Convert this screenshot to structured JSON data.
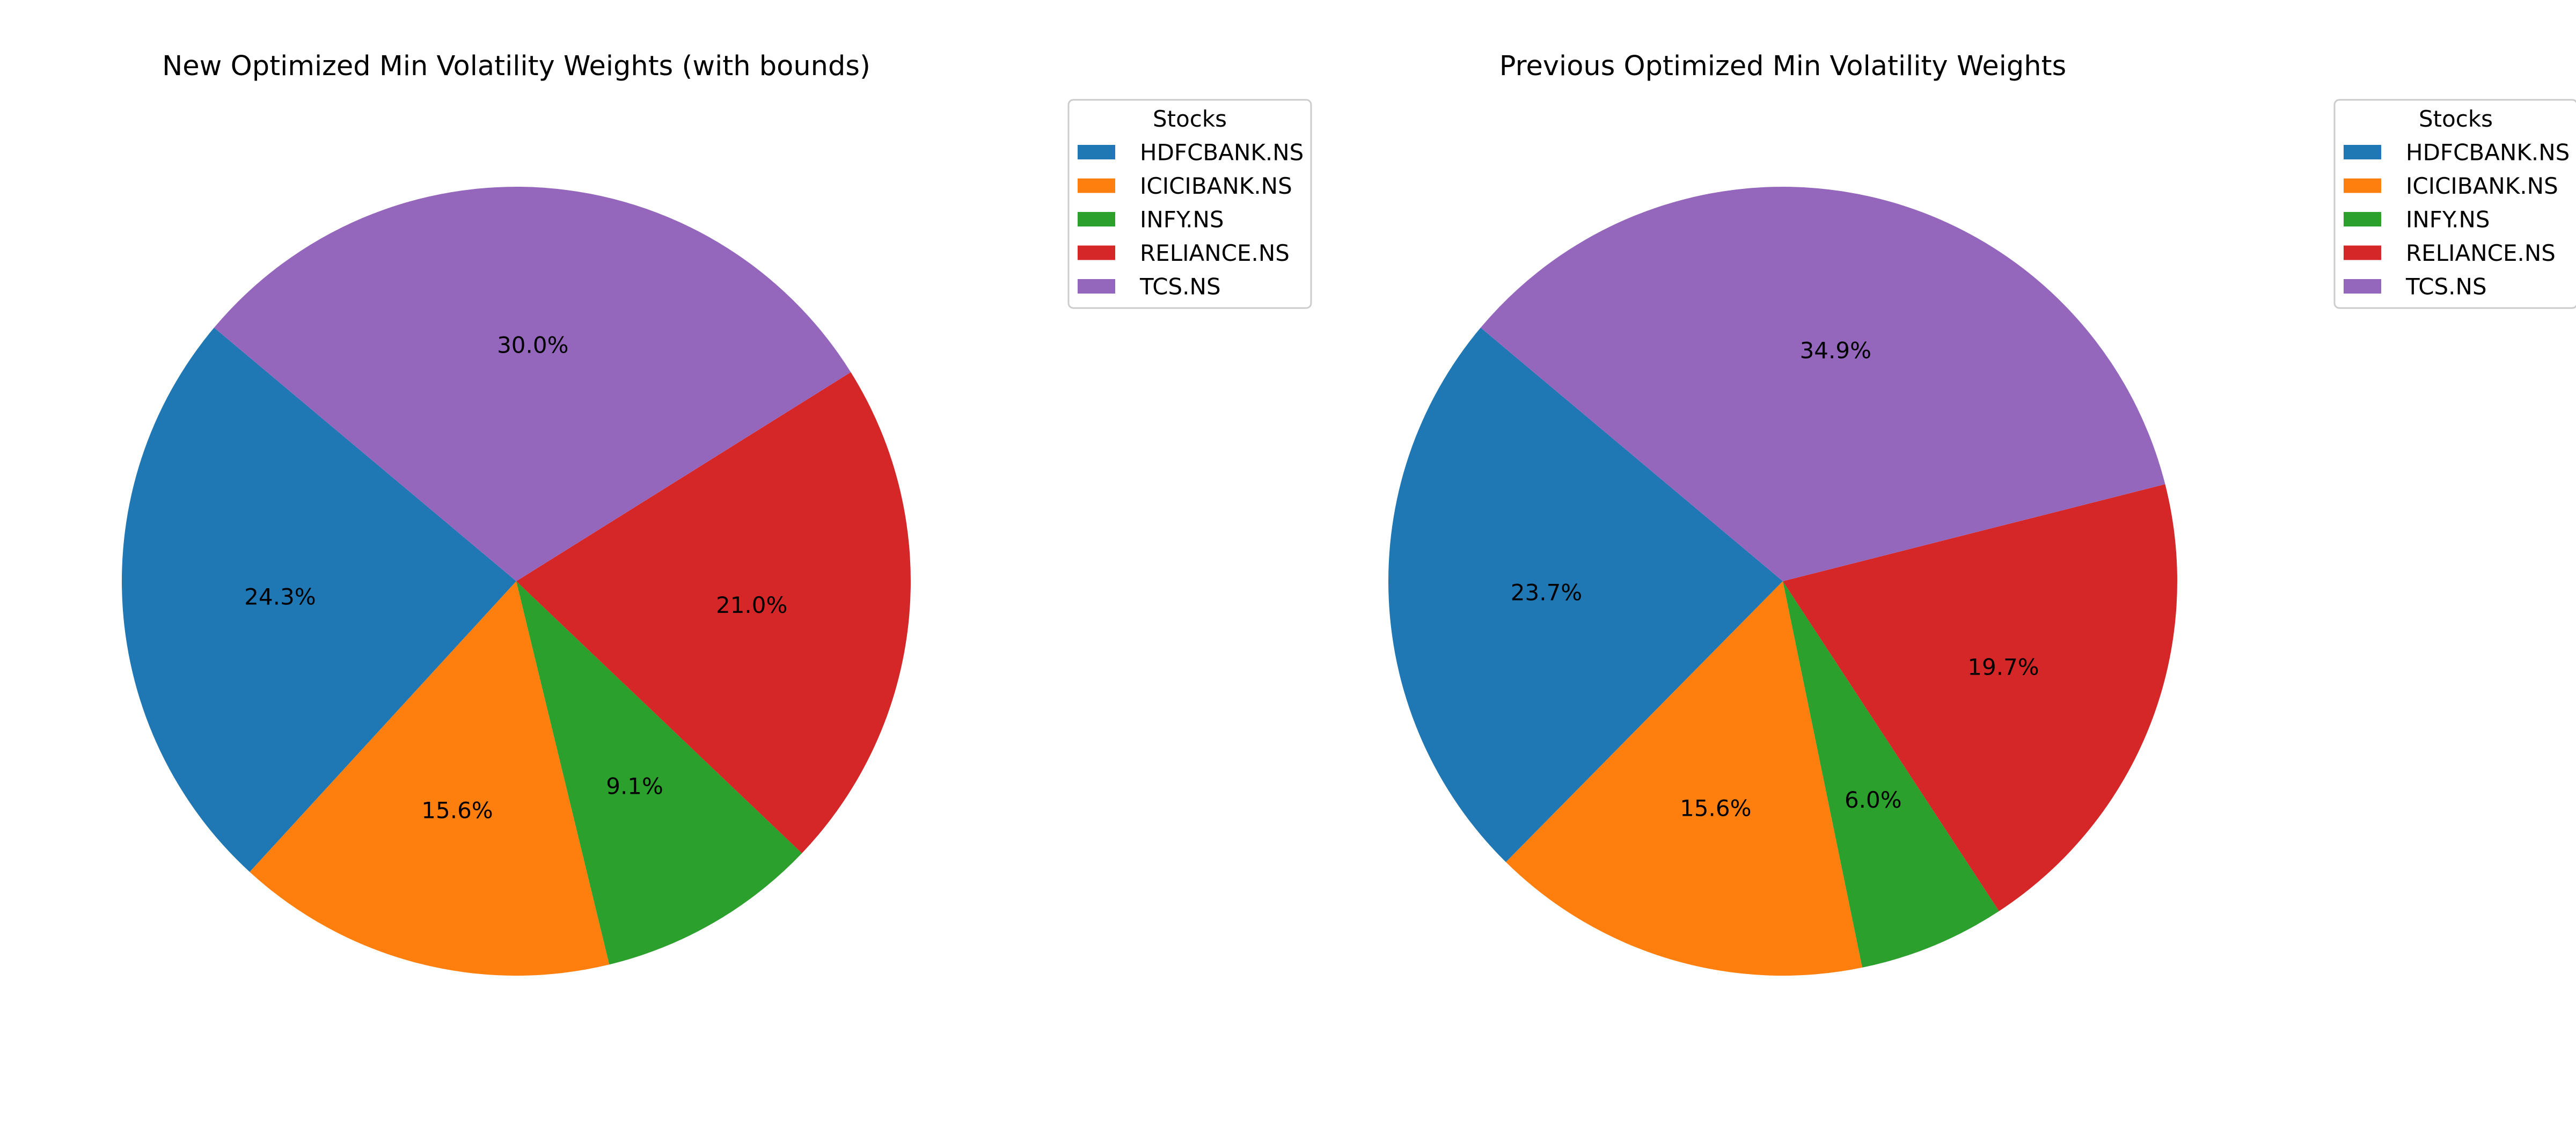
{
  "colors": {
    "HDFCBANK.NS": "#1f77b4",
    "ICICIBANK.NS": "#ff7f0e",
    "INFY.NS": "#2ca02c",
    "RELIANCE.NS": "#d62728",
    "TCS.NS": "#9467bd"
  },
  "chart_data": [
    {
      "type": "pie",
      "title": "New Optimized Min Volatility Weights (with bounds)",
      "legend_title": "Stocks",
      "legend_placement": "outside-right",
      "categories": [
        "HDFCBANK.NS",
        "ICICIBANK.NS",
        "INFY.NS",
        "RELIANCE.NS",
        "TCS.NS"
      ],
      "values": [
        24.3,
        15.6,
        9.1,
        21.0,
        30.0
      ],
      "labels": [
        "24.3%",
        "15.6%",
        "9.1%",
        "21.0%",
        "30.0%"
      ],
      "start_angle": 140
    },
    {
      "type": "pie",
      "title": "Previous Optimized Min Volatility Weights",
      "legend_title": "Stocks",
      "legend_placement": "outside-right",
      "categories": [
        "HDFCBANK.NS",
        "ICICIBANK.NS",
        "INFY.NS",
        "RELIANCE.NS",
        "TCS.NS"
      ],
      "values": [
        23.7,
        15.6,
        6.0,
        19.7,
        34.9
      ],
      "labels": [
        "23.7%",
        "15.6%",
        "6.0%",
        "19.7%",
        "34.9%"
      ],
      "start_angle": 140
    }
  ]
}
